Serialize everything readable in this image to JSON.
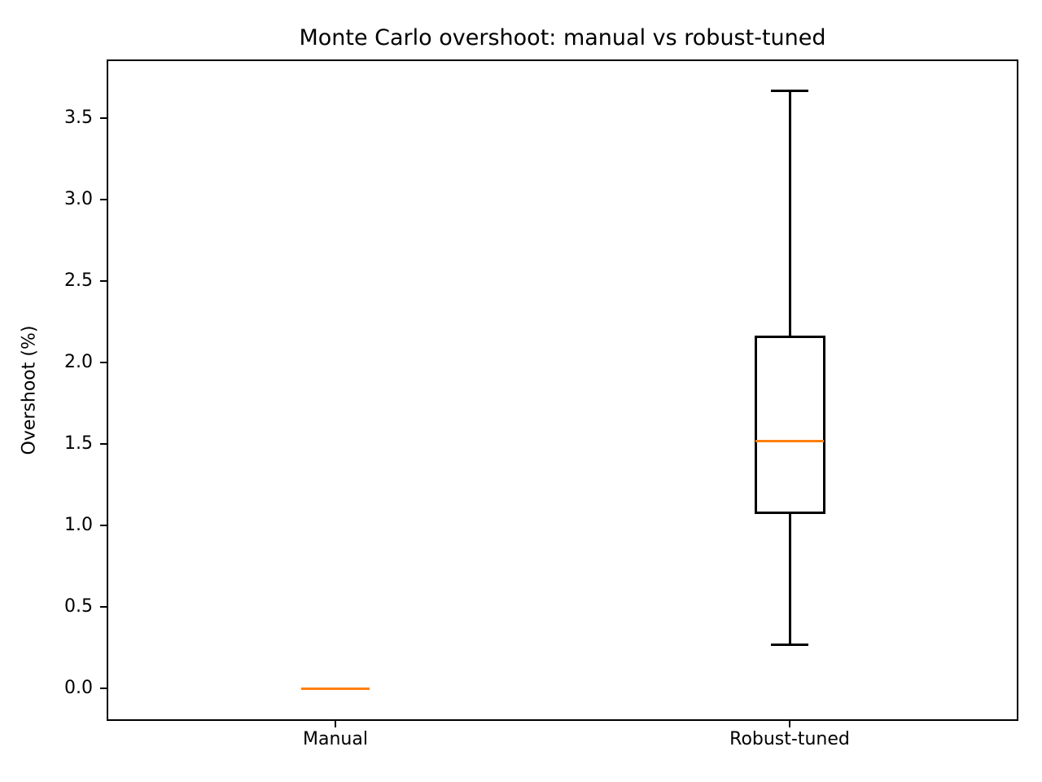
{
  "chart_data": {
    "type": "boxplot",
    "title": "Monte Carlo overshoot: manual vs robust-tuned",
    "xlabel": "",
    "ylabel": "Overshoot (%)",
    "categories": [
      "Manual",
      "Robust-tuned"
    ],
    "series": [
      {
        "name": "Manual",
        "whisker_low": 0.0,
        "q1": 0.0,
        "median": 0.0,
        "q3": 0.0,
        "whisker_high": 0.0
      },
      {
        "name": "Robust-tuned",
        "whisker_low": 0.27,
        "q1": 1.08,
        "median": 1.52,
        "q3": 2.16,
        "whisker_high": 3.67
      }
    ],
    "yticks": [
      0.0,
      0.5,
      1.0,
      1.5,
      2.0,
      2.5,
      3.0,
      3.5
    ],
    "ytick_labels": [
      "0.0",
      "0.5",
      "1.0",
      "1.5",
      "2.0",
      "2.5",
      "3.0",
      "3.5"
    ],
    "ylim": [
      -0.19,
      3.85
    ],
    "grid": false,
    "legend": null,
    "colors": {
      "median": "#ff7f0e",
      "box": "#000000",
      "whisker": "#000000",
      "spine": "#000000",
      "text": "#000000",
      "background": "#ffffff"
    }
  }
}
